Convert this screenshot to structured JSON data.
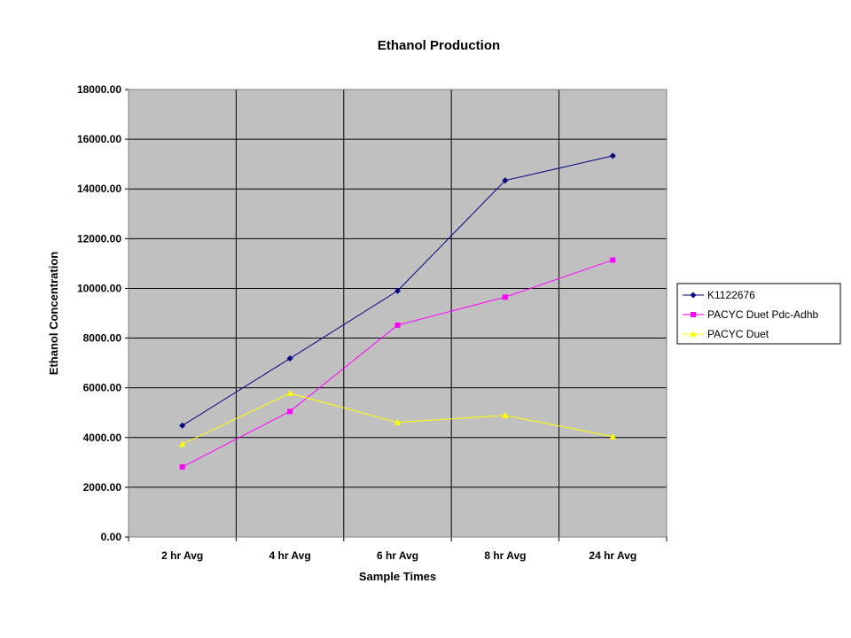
{
  "chart_data": {
    "type": "line",
    "title": "Ethanol Production",
    "xlabel": "Sample Times",
    "ylabel": "Ethanol Concentration",
    "categories": [
      "2 hr Avg",
      "4 hr Avg",
      "6 hr Avg",
      "8 hr Avg",
      "24 hr Avg"
    ],
    "ylim": [
      0,
      18000
    ],
    "yticks": [
      "0.00",
      "2000.00",
      "4000.00",
      "6000.00",
      "8000.00",
      "10000.00",
      "12000.00",
      "14000.00",
      "16000.00",
      "18000.00"
    ],
    "grid": true,
    "legend_position": "right",
    "plot_background": "#c0c0c0",
    "series": [
      {
        "name": "K1122676",
        "color": "#000080",
        "marker": "diamond",
        "values": [
          4480,
          7180,
          9900,
          14340,
          15330
        ]
      },
      {
        "name": "PACYC Duet Pdc-Adhb",
        "color": "#ff00ff",
        "marker": "square",
        "values": [
          2820,
          5050,
          8520,
          9650,
          11140
        ]
      },
      {
        "name": "PACYC Duet",
        "color": "#ffff00",
        "marker": "triangle",
        "values": [
          3730,
          5780,
          4610,
          4890,
          4040
        ]
      }
    ]
  }
}
